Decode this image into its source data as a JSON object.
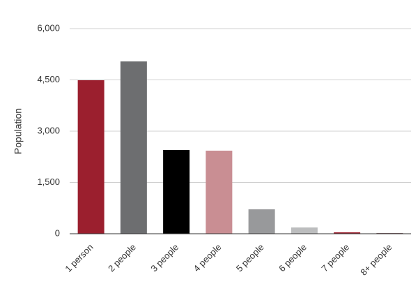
{
  "chart_data": {
    "type": "bar",
    "y_label": "Population",
    "categories": [
      "1 person",
      "2 people",
      "3 people",
      "4 people",
      "5 people",
      "6 people",
      "7 people",
      "8+ people"
    ],
    "values": [
      4490,
      5040,
      2450,
      2430,
      714,
      184,
      41,
      20
    ],
    "colors": [
      "#9b1f2e",
      "#6d6e70",
      "#000000",
      "#c98e93",
      "#98999b",
      "#bcbdbe",
      "#9b1f2e",
      "#8a6a6e"
    ],
    "ylim": [
      0,
      6000
    ],
    "yticks": [
      0,
      {
        "value": 1500,
        "label": "1,500"
      },
      {
        "value": 3000,
        "label": "3,000"
      },
      {
        "value": 4500,
        "label": "4,500"
      },
      {
        "value": 6000,
        "label": "6,000"
      }
    ],
    "grid": true
  }
}
